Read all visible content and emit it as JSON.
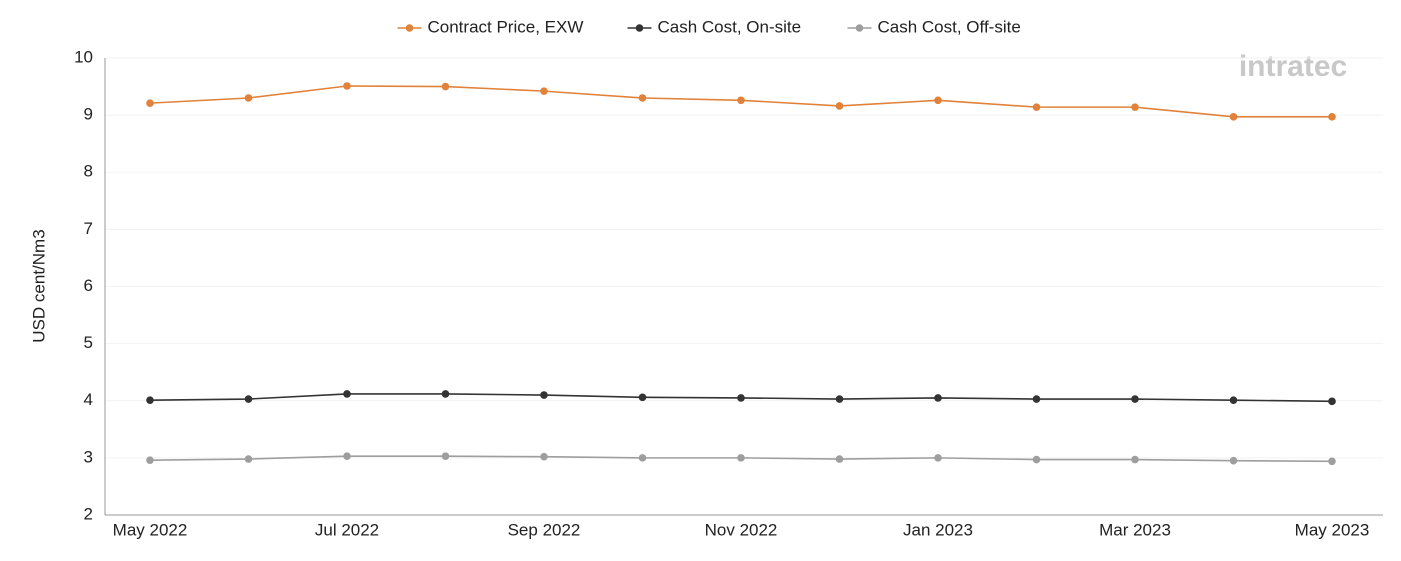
{
  "chart_data": {
    "type": "line",
    "y_label": "USD cent/Nm3",
    "logo": "intratec",
    "categories": [
      "May 2022",
      null,
      "Jul 2022",
      null,
      "Sep 2022",
      null,
      "Nov 2022",
      null,
      "Jan 2023",
      null,
      "Mar 2023",
      null,
      "May 2023"
    ],
    "series": [
      {
        "name": "Contract Price, EXW",
        "color": "#e0823a",
        "values": [
          9.21,
          9.3,
          9.51,
          9.5,
          9.42,
          9.3,
          9.26,
          9.16,
          9.26,
          9.14,
          9.14,
          8.97,
          8.97
        ]
      },
      {
        "name": "Cash Cost, On-site",
        "color": "#333333",
        "values": [
          4.01,
          4.03,
          4.12,
          4.12,
          4.1,
          4.06,
          4.05,
          4.03,
          4.05,
          4.03,
          4.03,
          4.01,
          3.99
        ]
      },
      {
        "name": "Cash Cost, Off-site",
        "color": "#9e9e9e",
        "values": [
          2.96,
          2.98,
          3.03,
          3.03,
          3.02,
          3.0,
          3.0,
          2.98,
          3.0,
          2.97,
          2.97,
          2.95,
          2.94
        ]
      }
    ],
    "ylim": [
      2,
      10
    ],
    "yticks": [
      2,
      3,
      4,
      5,
      6,
      7,
      8,
      9,
      10
    ],
    "grid": true,
    "legend": "top"
  }
}
